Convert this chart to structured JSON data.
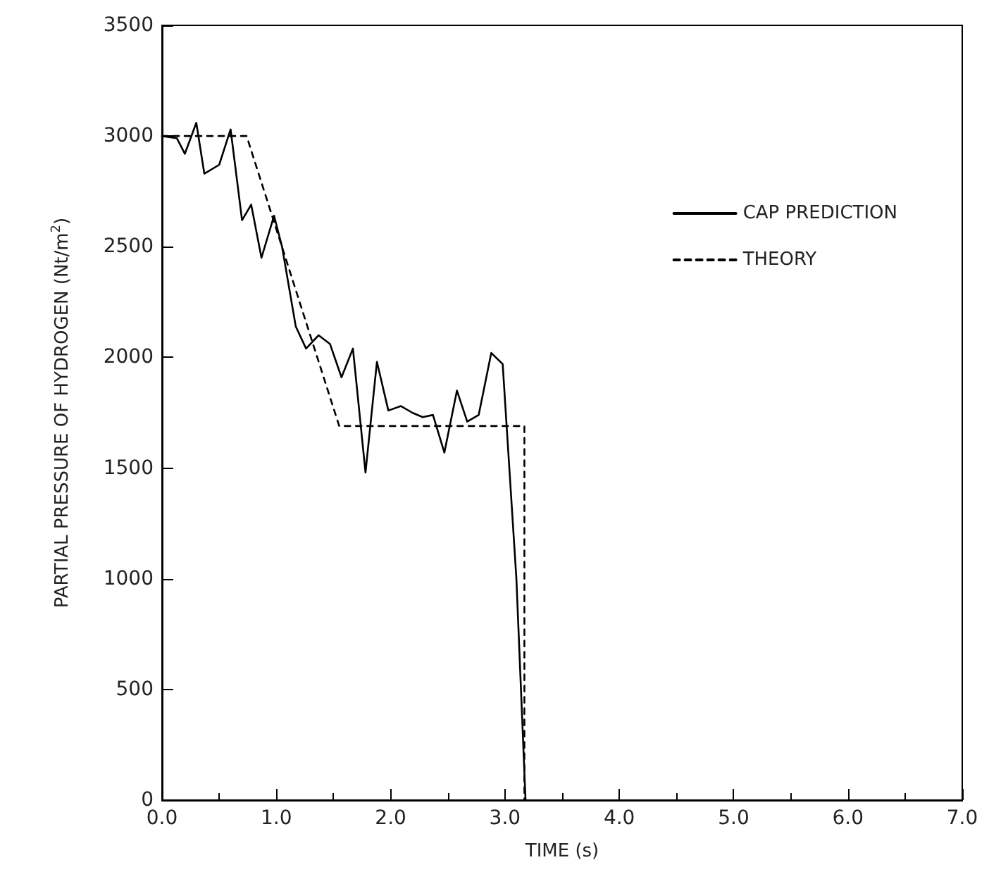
{
  "chart_data": {
    "type": "line",
    "xlabel": "TIME (s)",
    "ylabel": "PARTIAL PRESSURE OF HYDROGEN (Nt/m$^{2}$)",
    "xlim": [
      0,
      7
    ],
    "xticks": [
      {
        "value": 0,
        "label": "0.0"
      },
      {
        "value": 1,
        "label": "1.0"
      },
      {
        "value": 2,
        "label": "2.0"
      },
      {
        "value": 3,
        "label": "3.0"
      },
      {
        "value": 4,
        "label": "4.0"
      },
      {
        "value": 5,
        "label": "5.0"
      },
      {
        "value": 6,
        "label": "6.0"
      },
      {
        "value": 7,
        "label": "7.0"
      }
    ],
    "ylim": [
      0,
      3500
    ],
    "yticks": [
      0,
      500,
      1000,
      1500,
      2000,
      2500,
      3000,
      3500
    ],
    "grid": false,
    "legend": "top right",
    "marker": "none",
    "series": [
      {
        "name": "CAP PREDICTION",
        "color": "#000000",
        "line_style": "solid",
        "x": [
          0,
          0.13,
          0.2,
          0.3,
          0.37,
          0.5,
          0.6,
          0.7,
          0.78,
          0.87,
          0.98,
          1.05,
          1.17,
          1.26,
          1.37,
          1.47,
          1.57,
          1.67,
          1.78,
          1.88,
          1.98,
          2.09,
          2.19,
          2.28,
          2.37,
          2.47,
          2.58,
          2.67,
          2.77,
          2.88,
          2.98,
          3.1,
          3.18
        ],
        "values": [
          3000,
          2990,
          2920,
          3060,
          2830,
          2870,
          3030,
          2620,
          2690,
          2450,
          2640,
          2500,
          2140,
          2040,
          2100,
          2060,
          1910,
          2040,
          1480,
          1980,
          1760,
          1780,
          1750,
          1730,
          1740,
          1570,
          1850,
          1710,
          1740,
          2020,
          1970,
          1000,
          0
        ]
      },
      {
        "name": "THEORY",
        "color": "#000000",
        "line_style": "dashed",
        "x": [
          0,
          0.74,
          1.55,
          3.17,
          3.17
        ],
        "values": [
          3000,
          3000,
          1690,
          1690,
          0
        ]
      }
    ]
  }
}
